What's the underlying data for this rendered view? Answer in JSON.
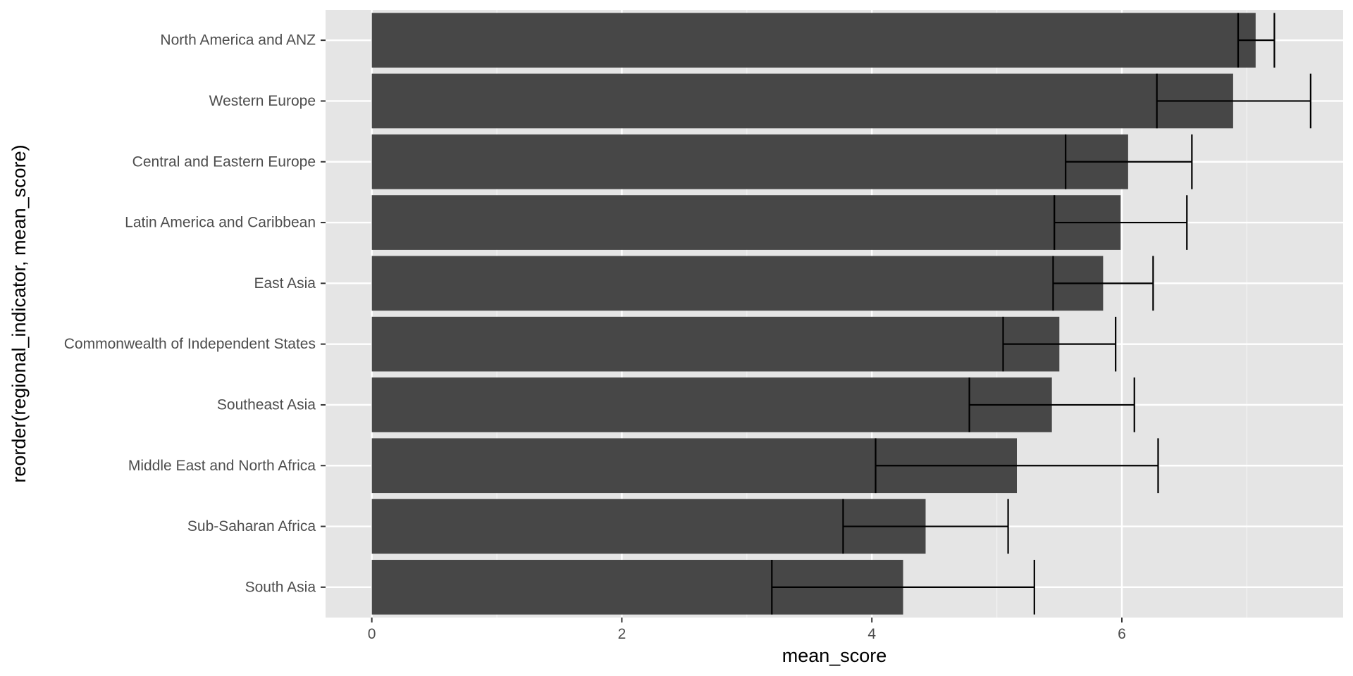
{
  "chart_data": {
    "type": "bar",
    "orientation": "horizontal",
    "xlabel": "mean_score",
    "ylabel": "reorder(regional_indicator, mean_score)",
    "xlim": [
      -0.37,
      7.77
    ],
    "x_ticks": [
      0,
      2,
      4,
      6
    ],
    "grid": true,
    "legend": "none",
    "categories": [
      "North America and ANZ",
      "Western Europe",
      "Central and Eastern Europe",
      "Latin America and Caribbean",
      "East Asia",
      "Commonwealth of Independent States",
      "Southeast Asia",
      "Middle East and North Africa",
      "Sub-Saharan Africa",
      "South Asia"
    ],
    "values": [
      7.07,
      6.89,
      6.05,
      5.99,
      5.85,
      5.5,
      5.44,
      5.16,
      4.43,
      4.25
    ],
    "error_low": [
      6.93,
      6.28,
      5.55,
      5.46,
      5.45,
      5.05,
      4.78,
      4.03,
      3.77,
      3.2
    ],
    "error_high": [
      7.22,
      7.51,
      6.56,
      6.52,
      6.25,
      5.95,
      6.1,
      6.29,
      5.09,
      5.3
    ],
    "colors": {
      "bar": "#474747",
      "panel": "#e5e5e5",
      "grid_major": "#ffffff",
      "grid_minor": "#f2f2f2",
      "error_bar": "#000000",
      "tick_text": "#4d4d4d",
      "axis_title": "#000000"
    }
  }
}
